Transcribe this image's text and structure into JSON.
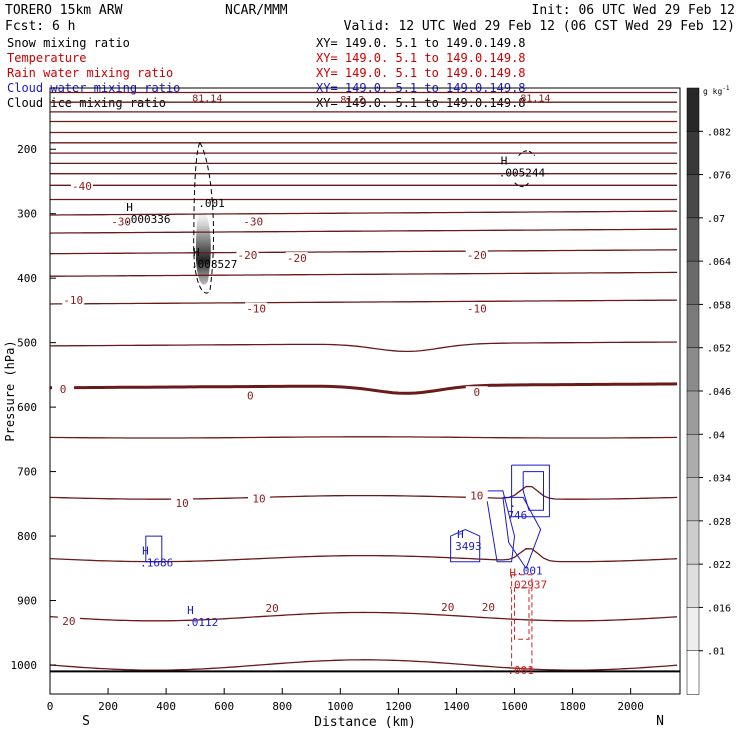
{
  "header": {
    "model": "TORERO  15km ARW",
    "center": "NCAR/MMM",
    "init": "Init: 06 UTC Wed 29 Feb 12",
    "fcst": "Fcst:     6 h",
    "valid": "Valid: 12 UTC Wed 29 Feb 12 (06 CST Wed 29 Feb 12)"
  },
  "legend": [
    {
      "field": "Snow mixing ratio",
      "xy": "XY= 149.0.  5.1 to 149.0.149.8",
      "color": "#000000"
    },
    {
      "field": "Temperature",
      "xy": "XY= 149.0.  5.1 to 149.0.149.8",
      "color": "#cc0000"
    },
    {
      "field": "Rain water mixing ratio",
      "xy": "XY= 149.0.  5.1 to 149.0.149.8",
      "color": "#cc0000"
    },
    {
      "field": "Cloud water mixing ratio",
      "xy": "XY= 149.0.  5.1 to 149.0.149.8",
      "color": "#1a1acc"
    },
    {
      "field": "Cloud ice mixing ratio",
      "xy": "XY= 149.0.  5.1 to 149.0.149.8",
      "color": "#000000"
    }
  ],
  "colors": {
    "isentrope": "#6b1a1a",
    "temperature_label": "#8b1a1a",
    "rain": "#cc2222",
    "cloud_water": "#1a1acc",
    "frame": "#000000"
  },
  "chart_data": {
    "type": "cross-section",
    "xlabel": "Distance (km)",
    "ylabel": "Pressure (hPa)",
    "xlim": [
      0,
      2170
    ],
    "x_ticks": [
      0,
      200,
      400,
      600,
      800,
      1000,
      1200,
      1400,
      1600,
      1800,
      2000
    ],
    "y_ticks": [
      200,
      300,
      400,
      500,
      600,
      700,
      800,
      900,
      1000
    ],
    "ylim": [
      1045,
      105
    ],
    "end_labels": {
      "left": "S",
      "right": "N"
    },
    "isentrope_levels_hPa": [
      112,
      127,
      142,
      157,
      174,
      190,
      206,
      222,
      238,
      256,
      278,
      302,
      330,
      362,
      397,
      440,
      505,
      570,
      647,
      740,
      835,
      925,
      1000
    ],
    "isentrope_dips": [
      {
        "center_km": 1230,
        "width_km": 220,
        "depth_hPa": 12,
        "applies_from_hPa": 480,
        "applies_to_hPa": 620
      },
      {
        "center_km": 1650,
        "width_km": 60,
        "depth_hPa": -20,
        "applies_from_hPa": 700,
        "applies_to_hPa": 850
      }
    ],
    "zero_isotherm_hPa": 570,
    "surface_hPa": 1010,
    "temperature_labels": [
      {
        "text": "-40",
        "x_km": 110,
        "p_hPa": 260
      },
      {
        "text": "-30",
        "x_km": 245,
        "p_hPa": 315
      },
      {
        "text": "-30",
        "x_km": 700,
        "p_hPa": 315
      },
      {
        "text": "-20",
        "x_km": 680,
        "p_hPa": 367
      },
      {
        "text": "-20",
        "x_km": 850,
        "p_hPa": 372
      },
      {
        "text": "-20",
        "x_km": 1470,
        "p_hPa": 367
      },
      {
        "text": "-10",
        "x_km": 80,
        "p_hPa": 437
      },
      {
        "text": "-10",
        "x_km": 710,
        "p_hPa": 450
      },
      {
        "text": "-10",
        "x_km": 1470,
        "p_hPa": 450
      },
      {
        "text": "0",
        "x_km": 45,
        "p_hPa": 575
      },
      {
        "text": "0",
        "x_km": 690,
        "p_hPa": 585
      },
      {
        "text": "0",
        "x_km": 1470,
        "p_hPa": 580
      },
      {
        "text": "10",
        "x_km": 455,
        "p_hPa": 752
      },
      {
        "text": "10",
        "x_km": 720,
        "p_hPa": 745
      },
      {
        "text": "10",
        "x_km": 1470,
        "p_hPa": 740
      },
      {
        "text": "20",
        "x_km": 65,
        "p_hPa": 935
      },
      {
        "text": "20",
        "x_km": 765,
        "p_hPa": 915
      },
      {
        "text": "20",
        "x_km": 1370,
        "p_hPa": 913
      },
      {
        "text": "20",
        "x_km": 1510,
        "p_hPa": 913
      }
    ],
    "maxima_labels": [
      {
        "mark": "H",
        "value": ".000336",
        "x_km": 290,
        "p_hPa": 305,
        "field": "snow"
      },
      {
        "mark": "H",
        "value": ".008527",
        "x_km": 520,
        "p_hPa": 375,
        "field": "snow"
      },
      {
        "mark": "",
        "value": ".001",
        "x_km": 545,
        "p_hPa": 280,
        "field": "snow"
      },
      {
        "mark": "H",
        "value": ".005244",
        "x_km": 1580,
        "p_hPa": 233,
        "field": "snow"
      },
      {
        "mark": "H",
        "value": ".1686",
        "x_km": 345,
        "p_hPa": 838,
        "field": "cloud_water"
      },
      {
        "mark": "H",
        "value": ".0112",
        "x_km": 500,
        "p_hPa": 930,
        "field": "cloud_water"
      },
      {
        "mark": "H",
        "value": "3493",
        "x_km": 1430,
        "p_hPa": 812,
        "field": "cloud_water"
      },
      {
        "mark": ".",
        "value": "746",
        "x_km": 1610,
        "p_hPa": 764,
        "field": "cloud_water"
      },
      {
        "mark": "",
        "value": ".001",
        "x_km": 1640,
        "p_hPa": 850,
        "field": "cloud_water"
      },
      {
        "mark": "H",
        "value": ".02937",
        "x_km": 1610,
        "p_hPa": 872,
        "field": "rain"
      },
      {
        "mark": "",
        "value": ".001",
        "x_km": 1610,
        "p_hPa": 1005,
        "field": "rain"
      }
    ],
    "edge_labels": [
      {
        "text": "81.14",
        "x_km": 490,
        "p_hPa": 120
      },
      {
        "text": "81.2",
        "x_km": 1000,
        "p_hPa": 122
      },
      {
        "text": "81.14",
        "x_km": 1620,
        "p_hPa": 120
      }
    ],
    "colorbar": {
      "unit": "g kg",
      "unit_exp": "-1",
      "ticks": [
        ".082",
        ".076",
        ".07",
        ".064",
        ".058",
        ".052",
        ".046",
        ".04",
        ".034",
        ".028",
        ".022",
        ".016",
        ".01"
      ],
      "min": 0.007,
      "max": 0.088
    }
  }
}
